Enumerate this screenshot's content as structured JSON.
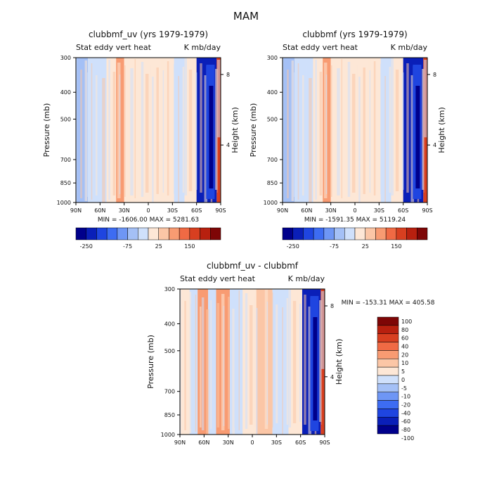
{
  "page_title": "MAM",
  "palette": {
    "colors": [
      "#00008b",
      "#0a1fb8",
      "#1f45e0",
      "#3d6cf2",
      "#6e96f5",
      "#a4c0f6",
      "#cfe0fb",
      "#fde7d6",
      "#fbc6a6",
      "#f89b72",
      "#f06a44",
      "#d83f20",
      "#b8200f",
      "#7e0606"
    ],
    "colorbar_labels": [
      "-250",
      "-75",
      "25",
      "150"
    ],
    "diff_levels": [
      "100",
      "80",
      "60",
      "40",
      "20",
      "10",
      "5",
      "0",
      "-5",
      "-10",
      "-20",
      "-40",
      "-60",
      "-80",
      "-100"
    ],
    "diff_colors": [
      "#7e0606",
      "#b8200f",
      "#d83f20",
      "#f06a44",
      "#f89b72",
      "#fbc6a6",
      "#fde7d6",
      "#cfe0fb",
      "#a4c0f6",
      "#6e96f5",
      "#3d6cf2",
      "#1f45e0",
      "#0a1fb8",
      "#00008b"
    ]
  },
  "chart_data": [
    {
      "type": "heatmap",
      "title": "clubbmf_uv (yrs 1979-1979)",
      "subtitle_left": "Stat eddy vert heat",
      "subtitle_right": "K mb/day",
      "ylabel": "Pressure (mb)",
      "ylabel_right": "Height (km)",
      "x_ticks": [
        "90N",
        "60N",
        "30N",
        "0",
        "30S",
        "60S",
        "90S"
      ],
      "xlim": [
        90,
        -90
      ],
      "y_ticks": [
        "300",
        "400",
        "500",
        "700",
        "850",
        "1000"
      ],
      "y_tick_values": [
        300,
        400,
        500,
        700,
        850,
        1000
      ],
      "ylim": [
        1000,
        300
      ],
      "y_scale": "log",
      "right_ticks": [
        "8",
        "4"
      ],
      "right_tick_pressures": [
        345,
        620
      ],
      "stats": "MIN = -1606.00   MAX = 5281.63",
      "colorbar": "horizontal",
      "bands": [
        {
          "lat": [
            90,
            75
          ],
          "level": "blue-light"
        },
        {
          "lat": [
            75,
            52
          ],
          "level": "blue-pale"
        },
        {
          "lat": [
            52,
            40
          ],
          "level": "peach"
        },
        {
          "lat": [
            40,
            30
          ],
          "level": "red-mid"
        },
        {
          "lat": [
            30,
            0
          ],
          "level": "peach"
        },
        {
          "lat": [
            0,
            -32
          ],
          "level": "peach"
        },
        {
          "lat": [
            -32,
            -45
          ],
          "level": "blue-pale"
        },
        {
          "lat": [
            -45,
            -60
          ],
          "level": "peach"
        },
        {
          "lat": [
            -60,
            -85
          ],
          "level": "blue-deep"
        },
        {
          "lat": [
            -85,
            -90
          ],
          "level": "red-deep"
        }
      ]
    },
    {
      "type": "heatmap",
      "title": "clubbmf (yrs 1979-1979)",
      "subtitle_left": "Stat eddy vert heat",
      "subtitle_right": "K mb/day",
      "ylabel": "Pressure (mb)",
      "ylabel_right": "Height (km)",
      "x_ticks": [
        "90N",
        "60N",
        "30N",
        "0",
        "30S",
        "60S",
        "90S"
      ],
      "xlim": [
        90,
        -90
      ],
      "y_ticks": [
        "300",
        "400",
        "500",
        "700",
        "850",
        "1000"
      ],
      "y_tick_values": [
        300,
        400,
        500,
        700,
        850,
        1000
      ],
      "ylim": [
        1000,
        300
      ],
      "y_scale": "log",
      "right_ticks": [
        "8",
        "4"
      ],
      "right_tick_pressures": [
        345,
        620
      ],
      "stats": "MIN = -1591.35   MAX = 5119.24",
      "colorbar": "horizontal",
      "bands": [
        {
          "lat": [
            90,
            75
          ],
          "level": "blue-light"
        },
        {
          "lat": [
            75,
            52
          ],
          "level": "blue-pale"
        },
        {
          "lat": [
            52,
            40
          ],
          "level": "peach"
        },
        {
          "lat": [
            40,
            30
          ],
          "level": "red-mid"
        },
        {
          "lat": [
            30,
            0
          ],
          "level": "peach"
        },
        {
          "lat": [
            0,
            -32
          ],
          "level": "peach"
        },
        {
          "lat": [
            -32,
            -45
          ],
          "level": "blue-pale"
        },
        {
          "lat": [
            -45,
            -60
          ],
          "level": "peach"
        },
        {
          "lat": [
            -60,
            -85
          ],
          "level": "blue-deep"
        },
        {
          "lat": [
            -85,
            -90
          ],
          "level": "red-deep"
        }
      ]
    },
    {
      "type": "heatmap",
      "title": "clubbmf_uv - clubbmf",
      "subtitle_left": "Stat eddy vert heat",
      "subtitle_right": "K mb/day",
      "ylabel": "Pressure (mb)",
      "ylabel_right": "Height (km)",
      "x_ticks": [
        "90N",
        "60N",
        "30N",
        "0",
        "30S",
        "60S",
        "90S"
      ],
      "xlim": [
        90,
        -90
      ],
      "y_ticks": [
        "300",
        "400",
        "500",
        "700",
        "850",
        "1000"
      ],
      "y_tick_values": [
        300,
        400,
        500,
        700,
        850,
        1000
      ],
      "ylim": [
        1000,
        300
      ],
      "y_scale": "log",
      "right_ticks": [
        "8",
        "4"
      ],
      "right_tick_pressures": [
        345,
        620
      ],
      "stats": "MIN = -153.31   MAX = 405.58",
      "colorbar": "vertical",
      "bands": [
        {
          "lat": [
            90,
            78
          ],
          "level": "peach"
        },
        {
          "lat": [
            78,
            68
          ],
          "level": "blue-pale"
        },
        {
          "lat": [
            68,
            55
          ],
          "level": "red-mid"
        },
        {
          "lat": [
            55,
            45
          ],
          "level": "blue-pale"
        },
        {
          "lat": [
            45,
            28
          ],
          "level": "red-mid"
        },
        {
          "lat": [
            28,
            12
          ],
          "level": "blue-pale"
        },
        {
          "lat": [
            12,
            -5
          ],
          "level": "peach"
        },
        {
          "lat": [
            -5,
            -25
          ],
          "level": "red-light"
        },
        {
          "lat": [
            -25,
            -45
          ],
          "level": "blue-pale"
        },
        {
          "lat": [
            -45,
            -62
          ],
          "level": "peach"
        },
        {
          "lat": [
            -62,
            -85
          ],
          "level": "blue-deep"
        },
        {
          "lat": [
            -85,
            -90
          ],
          "level": "red-deep"
        }
      ]
    }
  ]
}
